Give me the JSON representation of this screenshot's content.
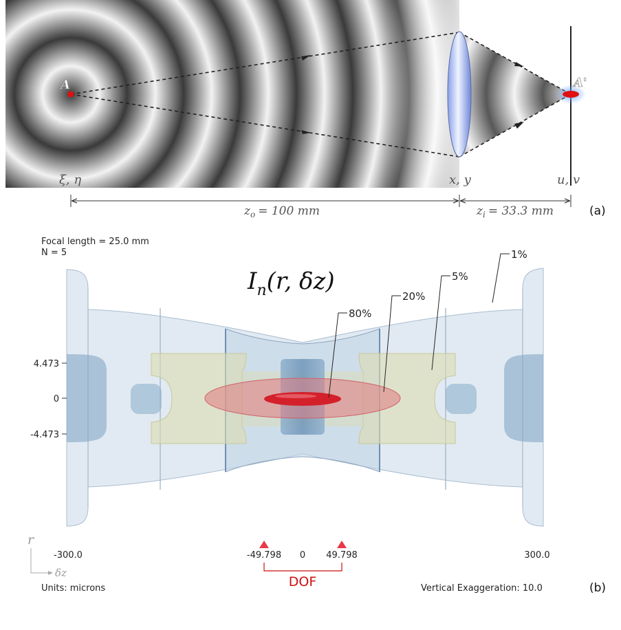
{
  "panel_a": {
    "object_label": "A",
    "image_label": "A'",
    "object_plane": "ξ, η",
    "lens_plane": "x, y",
    "image_plane": "u, v",
    "object_distance": "z_o = 100 mm",
    "object_distance_sub": "o",
    "object_distance_value": "= 100 mm",
    "image_distance": "z_i = 33.3 mm",
    "image_distance_sub": "i",
    "image_distance_value": "= 33.3 mm",
    "tag": "(a)"
  },
  "panel_b": {
    "focal_length": "Focal length = 25.0 mm",
    "n_value": "N = 5",
    "formula": "I_n(r, δz)",
    "formula_sub": "n",
    "formula_args": "(r, δz)",
    "iso_labels": [
      "80%",
      "20%",
      "5%",
      "1%"
    ],
    "y_ticks": [
      "4.473",
      "0",
      "-4.473"
    ],
    "x_ticks": [
      "-300.0",
      "-49.798",
      "0",
      "49.798",
      "300.0"
    ],
    "dof_label": "DOF",
    "axis_r": "r",
    "axis_dz": "δz",
    "units": "Units: microns",
    "exaggeration": "Vertical Exaggeration: 10.0",
    "tag": "(b)"
  },
  "colors": {
    "ring_dark": "#3a3a3a",
    "ring_light": "#f2f2f2",
    "point": "#e01010",
    "iso_80": "#d4202a",
    "iso_20": "#e08080",
    "iso_5": "#d8d8a8",
    "iso_1": "#b8cde0",
    "dof": "#cc1111",
    "triangle": "#e8394a"
  }
}
